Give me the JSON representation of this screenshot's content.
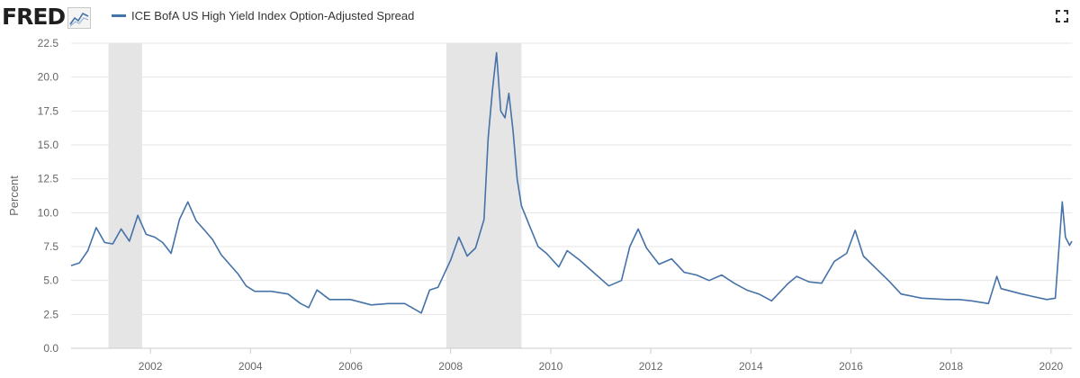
{
  "header": {
    "logo": "FRED",
    "logo_icon": "line-chart-icon",
    "fullscreen_icon": "fullscreen-icon"
  },
  "colors": {
    "series": "#4572a7",
    "recession": "#e5e5e5",
    "grid": "#e6e6e6"
  },
  "chart_data": {
    "type": "line",
    "title": "",
    "xlabel": "",
    "ylabel": "Percent",
    "xlim": [
      "2000-06-01",
      "2020-06-01"
    ],
    "ylim": [
      0,
      22.5
    ],
    "grid": true,
    "legend_position": "top-left",
    "x_tick_labels": [
      "2002",
      "2004",
      "2006",
      "2008",
      "2010",
      "2012",
      "2014",
      "2016",
      "2018",
      "2020"
    ],
    "y_tick_labels": [
      "0.0",
      "2.5",
      "5.0",
      "7.5",
      "10.0",
      "12.5",
      "15.0",
      "17.5",
      "20.0",
      "22.5"
    ],
    "recessions": [
      {
        "start": "2001-03-01",
        "end": "2001-11-01"
      },
      {
        "start": "2007-12-01",
        "end": "2009-06-01"
      }
    ],
    "series": [
      {
        "name": "ICE BofA US High Yield Index Option-Adjusted Spread",
        "points": [
          [
            "2000-06-01",
            6.1
          ],
          [
            "2000-08-01",
            6.3
          ],
          [
            "2000-10-01",
            7.2
          ],
          [
            "2000-12-01",
            8.9
          ],
          [
            "2001-02-01",
            7.8
          ],
          [
            "2001-04-01",
            7.7
          ],
          [
            "2001-06-01",
            8.8
          ],
          [
            "2001-08-01",
            7.9
          ],
          [
            "2001-10-01",
            9.8
          ],
          [
            "2001-12-01",
            8.4
          ],
          [
            "2002-02-01",
            8.2
          ],
          [
            "2002-04-01",
            7.8
          ],
          [
            "2002-06-01",
            7.0
          ],
          [
            "2002-08-01",
            9.5
          ],
          [
            "2002-10-01",
            10.8
          ],
          [
            "2002-12-01",
            9.4
          ],
          [
            "2003-02-01",
            8.7
          ],
          [
            "2003-04-01",
            8.0
          ],
          [
            "2003-06-01",
            6.9
          ],
          [
            "2003-08-01",
            6.2
          ],
          [
            "2003-10-01",
            5.5
          ],
          [
            "2003-12-01",
            4.6
          ],
          [
            "2004-02-01",
            4.2
          ],
          [
            "2004-06-01",
            4.2
          ],
          [
            "2004-10-01",
            4.0
          ],
          [
            "2005-01-01",
            3.3
          ],
          [
            "2005-03-01",
            3.0
          ],
          [
            "2005-05-01",
            4.3
          ],
          [
            "2005-08-01",
            3.6
          ],
          [
            "2006-01-01",
            3.6
          ],
          [
            "2006-06-01",
            3.2
          ],
          [
            "2006-10-01",
            3.3
          ],
          [
            "2007-02-01",
            3.3
          ],
          [
            "2007-06-01",
            2.6
          ],
          [
            "2007-08-01",
            4.3
          ],
          [
            "2007-10-01",
            4.5
          ],
          [
            "2008-01-01",
            6.5
          ],
          [
            "2008-03-01",
            8.2
          ],
          [
            "2008-05-01",
            6.8
          ],
          [
            "2008-07-01",
            7.4
          ],
          [
            "2008-09-01",
            9.5
          ],
          [
            "2008-10-01",
            15.5
          ],
          [
            "2008-11-01",
            19.0
          ],
          [
            "2008-12-01",
            21.8
          ],
          [
            "2009-01-01",
            17.5
          ],
          [
            "2009-02-01",
            17.0
          ],
          [
            "2009-03-01",
            18.8
          ],
          [
            "2009-04-01",
            16.0
          ],
          [
            "2009-05-01",
            12.5
          ],
          [
            "2009-06-01",
            10.5
          ],
          [
            "2009-08-01",
            9.0
          ],
          [
            "2009-10-01",
            7.5
          ],
          [
            "2009-12-01",
            7.0
          ],
          [
            "2010-03-01",
            6.0
          ],
          [
            "2010-05-01",
            7.2
          ],
          [
            "2010-08-01",
            6.5
          ],
          [
            "2010-12-01",
            5.4
          ],
          [
            "2011-03-01",
            4.6
          ],
          [
            "2011-06-01",
            5.0
          ],
          [
            "2011-08-01",
            7.5
          ],
          [
            "2011-10-01",
            8.8
          ],
          [
            "2011-12-01",
            7.4
          ],
          [
            "2012-03-01",
            6.2
          ],
          [
            "2012-06-01",
            6.6
          ],
          [
            "2012-09-01",
            5.6
          ],
          [
            "2012-12-01",
            5.4
          ],
          [
            "2013-03-01",
            5.0
          ],
          [
            "2013-06-01",
            5.4
          ],
          [
            "2013-09-01",
            4.8
          ],
          [
            "2013-12-01",
            4.3
          ],
          [
            "2014-03-01",
            4.0
          ],
          [
            "2014-06-01",
            3.5
          ],
          [
            "2014-10-01",
            4.8
          ],
          [
            "2014-12-01",
            5.3
          ],
          [
            "2015-03-01",
            4.9
          ],
          [
            "2015-06-01",
            4.8
          ],
          [
            "2015-09-01",
            6.4
          ],
          [
            "2015-12-01",
            7.0
          ],
          [
            "2016-02-01",
            8.7
          ],
          [
            "2016-04-01",
            6.8
          ],
          [
            "2016-07-01",
            5.9
          ],
          [
            "2016-10-01",
            5.0
          ],
          [
            "2017-01-01",
            4.0
          ],
          [
            "2017-06-01",
            3.7
          ],
          [
            "2017-12-01",
            3.6
          ],
          [
            "2018-03-01",
            3.6
          ],
          [
            "2018-06-01",
            3.5
          ],
          [
            "2018-10-01",
            3.3
          ],
          [
            "2018-12-01",
            5.3
          ],
          [
            "2019-01-01",
            4.4
          ],
          [
            "2019-06-01",
            4.0
          ],
          [
            "2019-12-01",
            3.6
          ],
          [
            "2020-02-01",
            3.7
          ],
          [
            "2020-03-23",
            10.8
          ],
          [
            "2020-04-15",
            8.2
          ],
          [
            "2020-05-15",
            7.6
          ],
          [
            "2020-06-01",
            7.9
          ]
        ]
      }
    ]
  }
}
